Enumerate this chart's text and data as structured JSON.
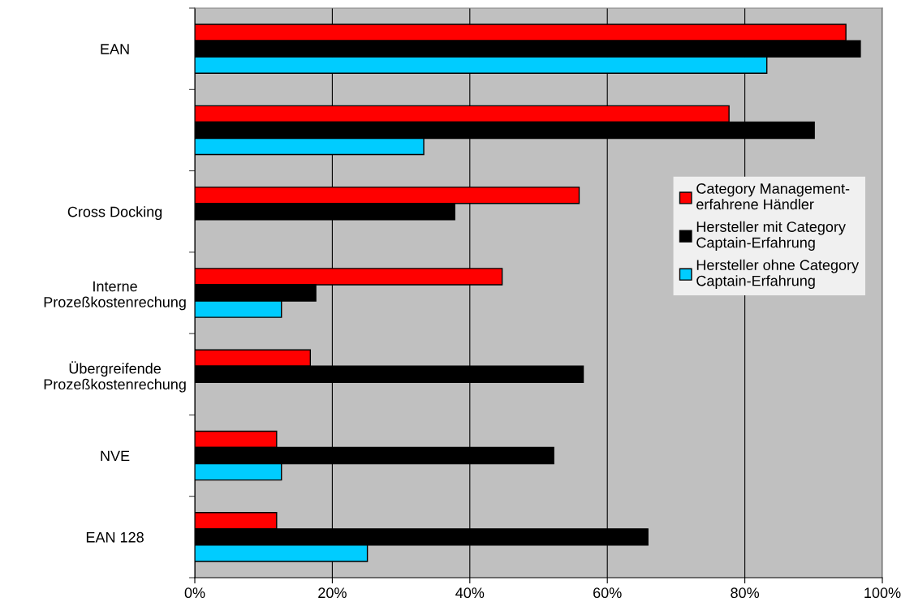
{
  "chart_data": {
    "type": "bar",
    "orientation": "horizontal",
    "categories": [
      "EAN",
      null,
      "Cross Docking",
      "Interne\nProzeßkostenrechung",
      "Übergreifende\nProzeßkostenrechung",
      "NVE",
      "EAN 128"
    ],
    "series": [
      {
        "name": "Category Management-\nerfahrene Händler",
        "color": "#ff0000",
        "values": [
          94.7,
          77.7,
          55.9,
          44.7,
          16.8,
          11.9,
          11.9
        ]
      },
      {
        "name": "Hersteller mit Category\nCaptain-Erfahrung",
        "color": "#000000",
        "values": [
          96.8,
          90.1,
          37.8,
          17.6,
          56.5,
          52.2,
          65.9
        ]
      },
      {
        "name": "Hersteller ohne Category\nCaptain-Erfahrung",
        "color": "#00ccff",
        "values": [
          83.2,
          33.3,
          null,
          12.6,
          null,
          12.6,
          25.1
        ]
      }
    ],
    "xlim": [
      0,
      100
    ],
    "xticks": [
      {
        "value": 0,
        "label": "0%"
      },
      {
        "value": 20,
        "label": "20%"
      },
      {
        "value": 40,
        "label": "40%"
      },
      {
        "value": 60,
        "label": "60%"
      },
      {
        "value": 80,
        "label": "80%"
      },
      {
        "value": 100,
        "label": "100%"
      }
    ],
    "grid": "x",
    "legend": "right"
  }
}
